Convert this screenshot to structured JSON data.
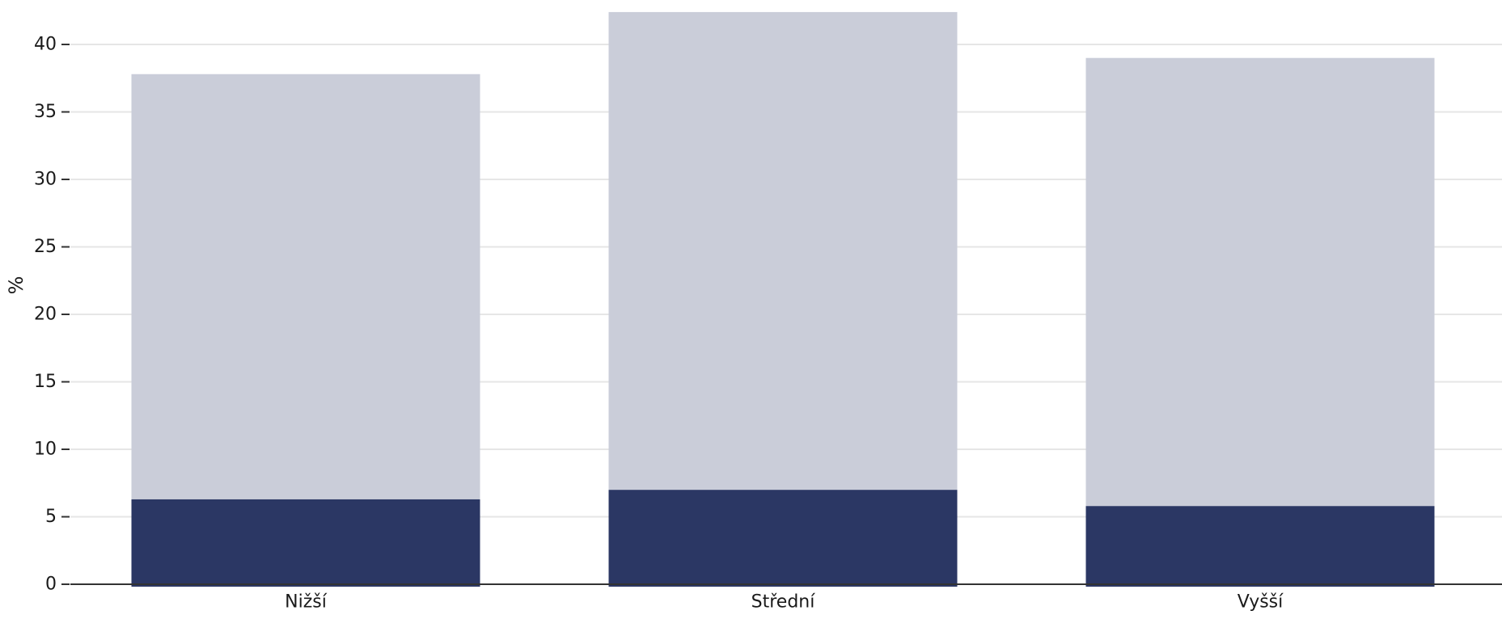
{
  "chart_data": {
    "type": "bar",
    "stacked": true,
    "categories": [
      "Nižší",
      "Střední",
      "Vyšší"
    ],
    "series": [
      {
        "values": [
          6.3,
          7.0,
          5.8
        ],
        "color": "#2b3764"
      },
      {
        "values": [
          31.5,
          35.4,
          33.2
        ],
        "color": "#cacdd9"
      }
    ],
    "ylabel": "%",
    "ylim": [
      0,
      42.5
    ],
    "yticks": [
      0,
      5,
      10,
      15,
      20,
      25,
      30,
      35,
      40
    ],
    "grid": true
  }
}
